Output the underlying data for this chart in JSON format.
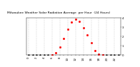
{
  "title": "Milwaukee Weather Solar Radiation Average  per Hour  (24 Hours)",
  "hours": [
    0,
    1,
    2,
    3,
    4,
    5,
    6,
    7,
    8,
    9,
    10,
    11,
    12,
    13,
    14,
    15,
    16,
    17,
    18,
    19,
    20,
    21,
    22,
    23
  ],
  "solar_radiation": [
    0,
    0,
    0,
    0,
    0,
    0,
    2,
    25,
    90,
    190,
    290,
    370,
    400,
    380,
    310,
    230,
    135,
    50,
    10,
    1,
    0,
    0,
    0,
    0
  ],
  "dot_color": "#ff0000",
  "night_color": "#000000",
  "bg_color": "#ffffff",
  "title_bg_color": "#c0c0c0",
  "grid_color": "#aaaaaa",
  "ylim": [
    0,
    420
  ],
  "xlim": [
    -0.5,
    23.5
  ],
  "legend_color": "#ff0000",
  "title_fontsize": 3.2,
  "tick_fontsize": 2.8,
  "ytick_labels": [
    "0",
    "1",
    "2",
    "3",
    "4"
  ],
  "ytick_positions": [
    0,
    105,
    210,
    315,
    420
  ]
}
